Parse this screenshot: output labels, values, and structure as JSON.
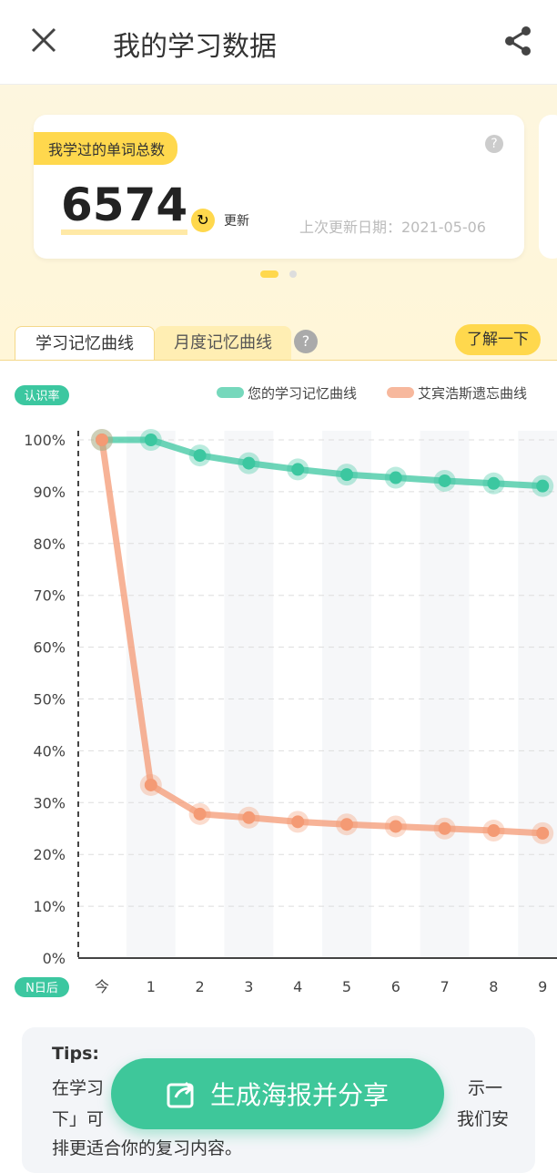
{
  "header": {
    "title": "我的学习数据"
  },
  "card": {
    "label": "我学过的单词总数",
    "count": "6574",
    "refresh": "更新",
    "updated": "上次更新日期：2021-05-06"
  },
  "tabs": {
    "active": "学习记忆曲线",
    "other": "月度记忆曲线",
    "learn_more": "了解一下"
  },
  "chart_data": {
    "type": "line",
    "y_label": "认识率",
    "x_label": "N日后",
    "categories": [
      "今",
      "1",
      "2",
      "3",
      "4",
      "5",
      "6",
      "7",
      "8",
      "9"
    ],
    "series": [
      {
        "name": "您的学习记忆曲线",
        "color": "#3cc7a0",
        "values": [
          100,
          100,
          97,
          95.5,
          94.3,
          93.3,
          92.7,
          92.1,
          91.6,
          91.1
        ]
      },
      {
        "name": "艾宾浩斯遗忘曲线",
        "color": "#f49a74",
        "values": [
          100,
          33.4,
          27.8,
          27.1,
          26.3,
          25.8,
          25.4,
          25.0,
          24.6,
          24.1
        ]
      }
    ],
    "ylim": [
      0,
      100
    ],
    "yticks": [
      {
        "value": 0,
        "label": "0%"
      },
      {
        "value": 10,
        "label": "10%"
      },
      {
        "value": 20,
        "label": "20%"
      },
      {
        "value": 30,
        "label": "30%"
      },
      {
        "value": 40,
        "label": "40%"
      },
      {
        "value": 50,
        "label": "50%"
      },
      {
        "value": 60,
        "label": "60%"
      },
      {
        "value": 70,
        "label": "70%"
      },
      {
        "value": 80,
        "label": "80%"
      },
      {
        "value": 90,
        "label": "90%"
      },
      {
        "value": 100,
        "label": "100%"
      }
    ],
    "grid": true
  },
  "tips": {
    "title": "Tips:",
    "fragments": [
      "在学习",
      "示一",
      "下」可",
      "我们安",
      "排更适合你的复习内容。"
    ]
  },
  "button": {
    "label": "生成海报并分享"
  }
}
